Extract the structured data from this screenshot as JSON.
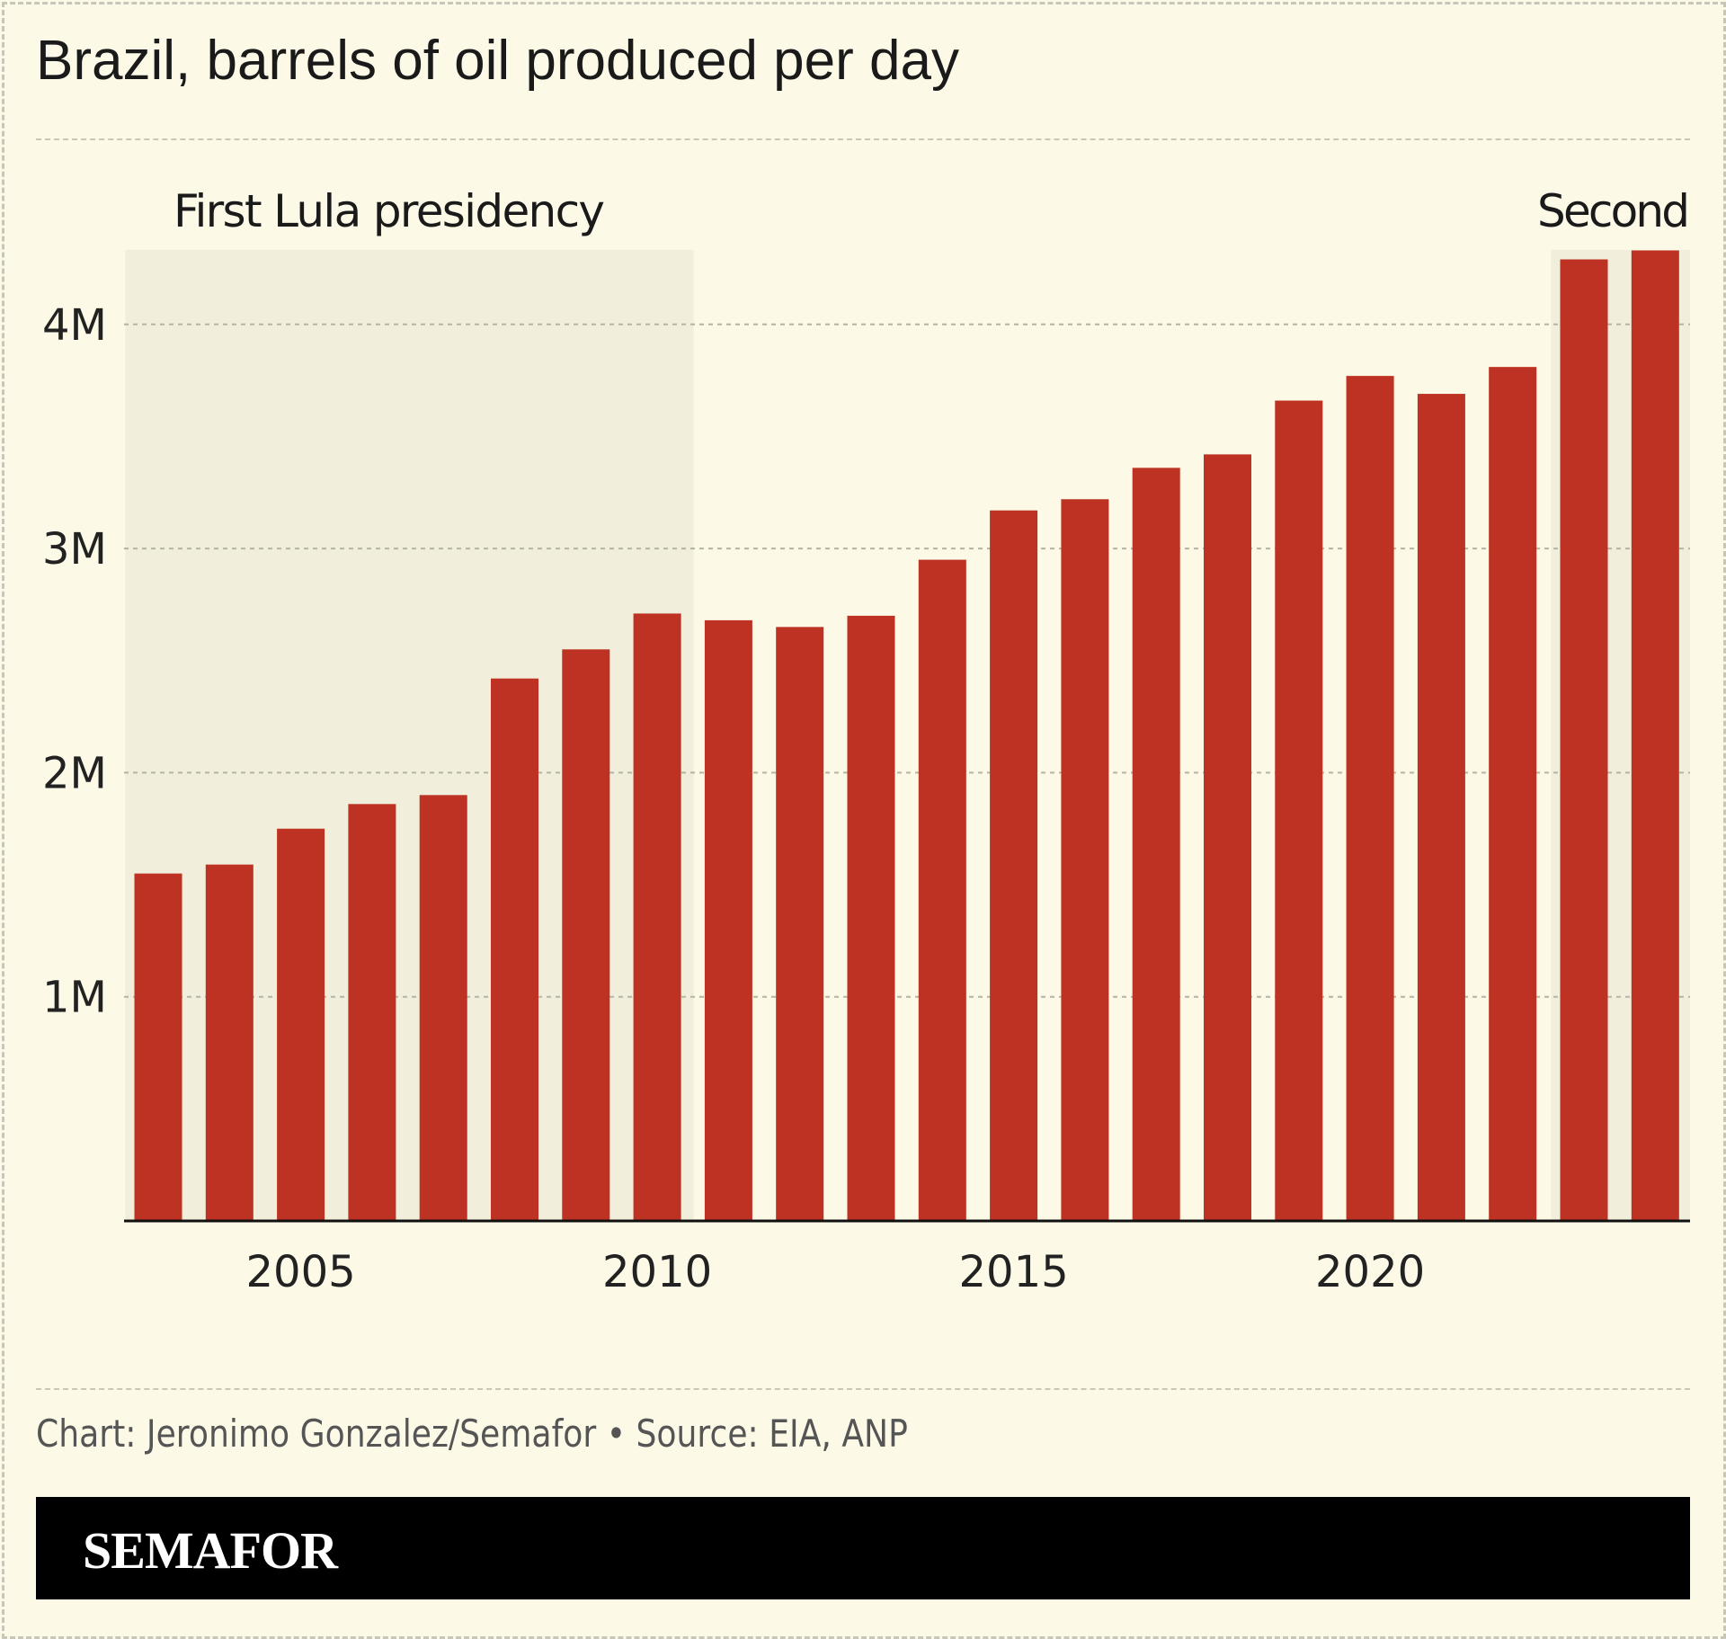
{
  "title": "Brazil, barrels of oil produced per day",
  "footer": {
    "source": "Chart: Jeronimo Gonzalez/Semafor • Source: EIA, ANP",
    "brand": "SEMAFOR"
  },
  "colors": {
    "background": "#fcf9e6",
    "bar": "#bd3222",
    "shade": "#f1efdc",
    "brand_bar": "#000000"
  },
  "chart_data": {
    "type": "bar",
    "title": "Brazil, barrels of oil produced per day",
    "categories": [
      2003,
      2004,
      2005,
      2006,
      2007,
      2008,
      2009,
      2010,
      2011,
      2012,
      2013,
      2014,
      2015,
      2016,
      2017,
      2018,
      2019,
      2020,
      2021,
      2022,
      2023,
      2024
    ],
    "values": [
      1550000,
      1590000,
      1750000,
      1860000,
      1900000,
      2420000,
      2550000,
      2710000,
      2680000,
      2650000,
      2700000,
      2950000,
      3170000,
      3220000,
      3360000,
      3420000,
      3660000,
      3770000,
      3690000,
      3810000,
      4290000,
      4330000
    ],
    "ylim": [
      0,
      4330000
    ],
    "yticks": [
      1000000,
      2000000,
      3000000,
      4000000
    ],
    "ytick_labels": [
      "1M",
      "2M",
      "3M",
      "4M"
    ],
    "xticks": [
      2005,
      2010,
      2015,
      2020
    ],
    "xtick_labels": [
      "2005",
      "2010",
      "2015",
      "2020"
    ],
    "grid": "horizontal dashed",
    "annotations": [
      {
        "label": "First Lula presidency",
        "start": 2003,
        "end": 2010
      },
      {
        "label": "Second",
        "start": 2023,
        "end": 2024
      }
    ]
  }
}
